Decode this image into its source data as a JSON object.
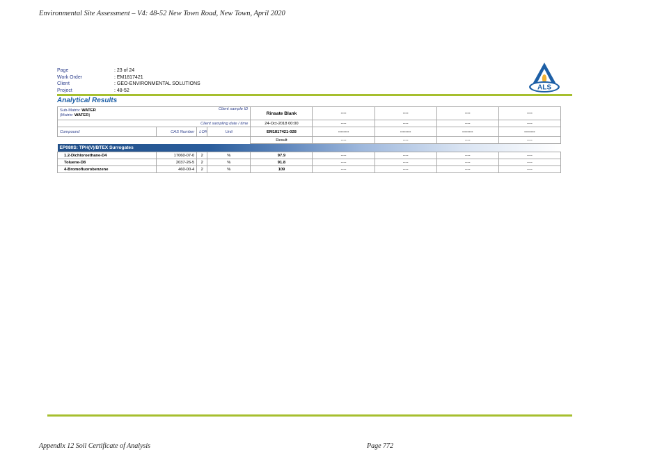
{
  "running_header": "Environmental Site Assessment – V4: 48-52 New Town Road, New Town, April 2020",
  "meta": [
    {
      "label": "Page",
      "value": ": 23 of 24"
    },
    {
      "label": "Work Order",
      "value": ": EM1817421"
    },
    {
      "label": "Client",
      "value": ": GEO-ENVIRONMENTAL SOLUTIONS"
    },
    {
      "label": "Project",
      "value": ": 48-52"
    }
  ],
  "logo": {
    "text": "ALS",
    "color": "#1d5fa6",
    "flame_color": "#f2b233"
  },
  "section_title": "Analytical Results",
  "table": {
    "sub_matrix_label": "Sub-Matrix: ",
    "sub_matrix_value": "WATER",
    "matrix_open": "(Matrix: ",
    "matrix_value": "WATER",
    "matrix_close": ")",
    "client_sample_id_label": "Client sample ID",
    "client_sampling_label": "Client sampling date / time",
    "compound_label": "Compound",
    "cas_label": "CAS Number",
    "lor_label": "LOR",
    "unit_label": "Unit",
    "sample_id_values": [
      "Rinsate Blank",
      "----",
      "----",
      "----",
      "----"
    ],
    "sampling_values": [
      "24-Oct-2018 00:00",
      "----",
      "----",
      "----",
      "----"
    ],
    "lab_ids": [
      "EM1817421-028",
      "--------",
      "--------",
      "--------",
      "--------"
    ],
    "result_row": [
      "Result",
      "----",
      "----",
      "----",
      "----"
    ],
    "group_title": "EP080S: TPH(V)/BTEX Surrogates",
    "compounds": [
      {
        "name": "1.2-Dichloroethane-D4",
        "cas": "17060-07-0",
        "lor": "2",
        "unit": "%",
        "values": [
          "97.9",
          "----",
          "----",
          "----",
          "----"
        ]
      },
      {
        "name": "Toluene-D8",
        "cas": "2037-26-5",
        "lor": "2",
        "unit": "%",
        "values": [
          "91.8",
          "----",
          "----",
          "----",
          "----"
        ]
      },
      {
        "name": "4-Bromofluorobenzene",
        "cas": "460-00-4",
        "lor": "2",
        "unit": "%",
        "values": [
          "109",
          "----",
          "----",
          "----",
          "----"
        ]
      }
    ]
  },
  "footer": {
    "left": "Appendix 12 Soil Certificate of Analysis",
    "page": "Page 772"
  }
}
